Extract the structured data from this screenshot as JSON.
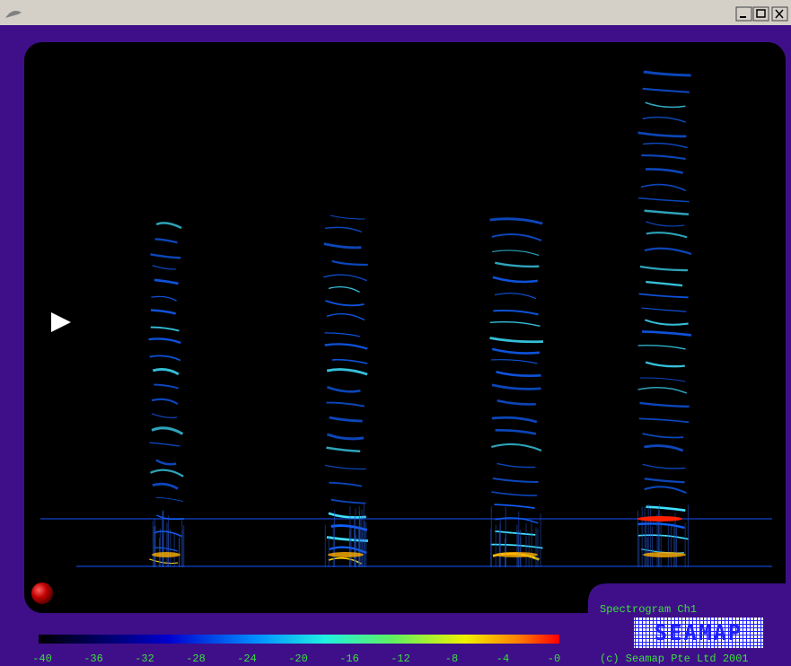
{
  "panel": {
    "label": "Spectrogram Ch1",
    "logo": "SEAMAP",
    "copyright": "(c) Seamap Pte Ltd 2001"
  },
  "colorbar": {
    "ticks": [
      "-40",
      "-36",
      "-32",
      "-28",
      "-24",
      "-20",
      "-16",
      "-12",
      "-8",
      "-4",
      "-0"
    ]
  }
}
